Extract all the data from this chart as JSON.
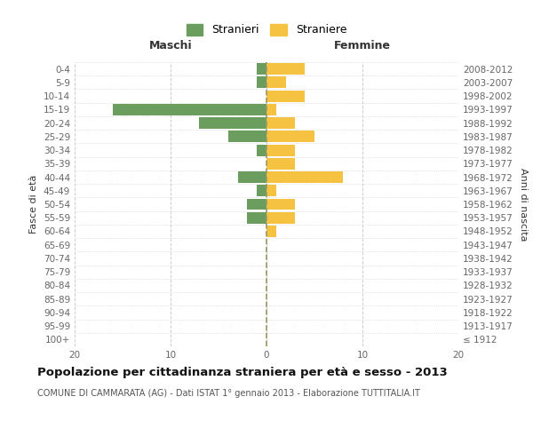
{
  "age_groups": [
    "100+",
    "95-99",
    "90-94",
    "85-89",
    "80-84",
    "75-79",
    "70-74",
    "65-69",
    "60-64",
    "55-59",
    "50-54",
    "45-49",
    "40-44",
    "35-39",
    "30-34",
    "25-29",
    "20-24",
    "15-19",
    "10-14",
    "5-9",
    "0-4"
  ],
  "birth_years": [
    "≤ 1912",
    "1913-1917",
    "1918-1922",
    "1923-1927",
    "1928-1932",
    "1933-1937",
    "1938-1942",
    "1943-1947",
    "1948-1952",
    "1953-1957",
    "1958-1962",
    "1963-1967",
    "1968-1972",
    "1973-1977",
    "1978-1982",
    "1983-1987",
    "1988-1992",
    "1993-1997",
    "1998-2002",
    "2003-2007",
    "2008-2012"
  ],
  "maschi": [
    0,
    0,
    0,
    0,
    0,
    0,
    0,
    0,
    0,
    2,
    2,
    1,
    3,
    0,
    1,
    4,
    7,
    16,
    0,
    1,
    1
  ],
  "femmine": [
    0,
    0,
    0,
    0,
    0,
    0,
    0,
    0,
    1,
    3,
    3,
    1,
    8,
    3,
    3,
    5,
    3,
    1,
    4,
    2,
    4
  ],
  "color_maschi": "#6b9e5e",
  "color_femmine": "#f5c242",
  "xlim": 20,
  "title": "Popolazione per cittadinanza straniera per età e sesso - 2013",
  "subtitle": "COMUNE DI CAMMARATA (AG) - Dati ISTAT 1° gennaio 2013 - Elaborazione TUTTITALIA.IT",
  "ylabel_left": "Fasce di età",
  "ylabel_right": "Anni di nascita",
  "label_maschi": "Stranieri",
  "label_femmine": "Straniere",
  "header_maschi": "Maschi",
  "header_femmine": "Femmine",
  "bg_color": "#ffffff",
  "grid_color": "#cccccc",
  "axis_label_color": "#666666",
  "bar_height": 0.85
}
